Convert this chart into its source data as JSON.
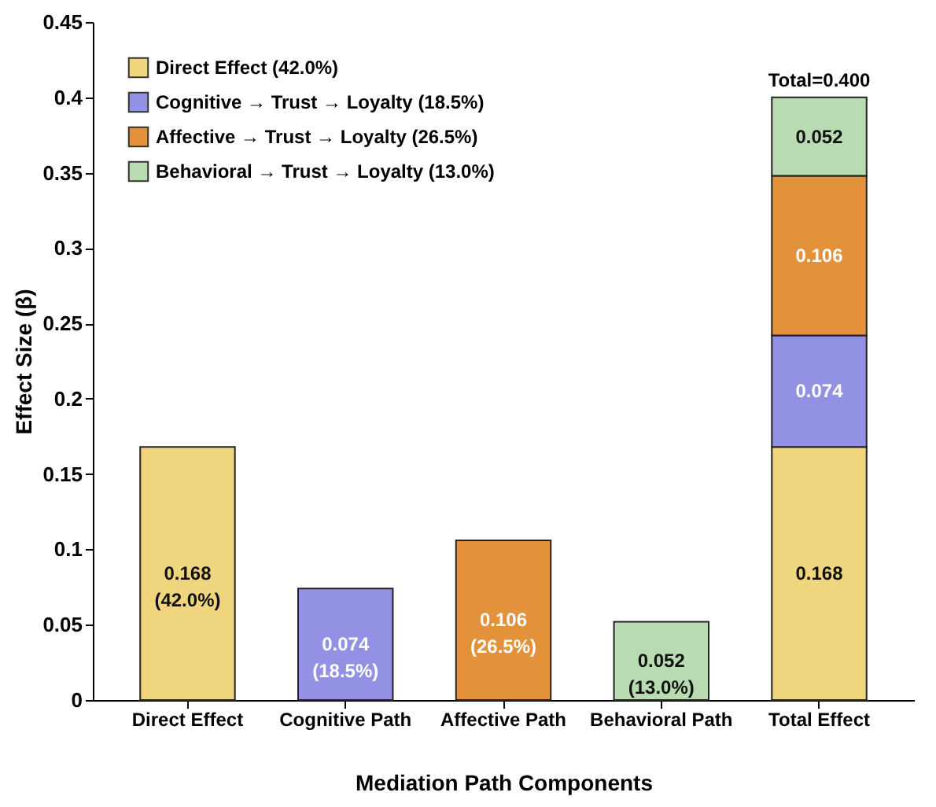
{
  "chart_data": {
    "type": "bar",
    "stacked": true,
    "xlabel": "Mediation Path Components",
    "ylabel": "Effect Size (β)",
    "categories": [
      "Direct Effect",
      "Cognitive Path",
      "Affective Path",
      "Behavioral Path",
      "Total Effect"
    ],
    "ylim": [
      0,
      0.45
    ],
    "yticks": [
      0,
      0.05,
      0.1,
      0.15,
      0.2,
      0.25,
      0.3,
      0.35,
      0.4,
      0.45
    ],
    "grid": false,
    "legend": "top left",
    "series": [
      {
        "name": "Direct Effect (42.0%)",
        "color": "#f0d57f",
        "values": [
          0.168,
          null,
          null,
          null,
          0.168
        ],
        "value_labels": [
          "0.168\n(42.0%)",
          null,
          null,
          null,
          "0.168"
        ]
      },
      {
        "name": "Cognitive → Trust → Loyalty (18.5%)",
        "color": "#9391e3",
        "values": [
          null,
          0.074,
          null,
          null,
          0.074
        ],
        "value_labels": [
          null,
          "0.074\n(18.5%)",
          null,
          null,
          "0.074"
        ]
      },
      {
        "name": "Affective → Trust → Loyalty (26.5%)",
        "color": "#e3913a",
        "values": [
          null,
          null,
          0.106,
          null,
          0.106
        ],
        "value_labels": [
          null,
          null,
          "0.106\n(26.5%)",
          null,
          "0.106"
        ]
      },
      {
        "name": "Behavioral → Trust → Loyalty (13.0%)",
        "color": "#b8dbb2",
        "values": [
          null,
          null,
          null,
          0.052,
          0.052
        ],
        "value_labels": [
          null,
          null,
          null,
          "0.052\n(13.0%)",
          "0.052"
        ]
      }
    ],
    "totals": [
      null,
      null,
      null,
      null,
      "Total=0.400"
    ]
  }
}
